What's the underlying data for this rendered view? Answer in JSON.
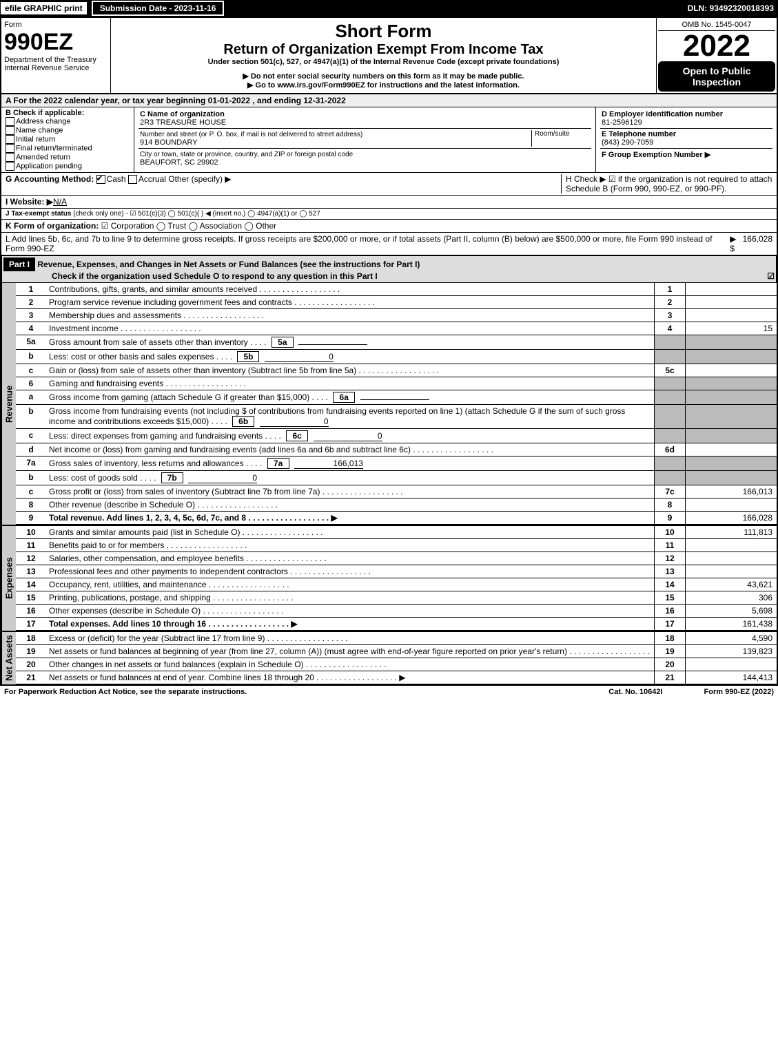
{
  "topbar": {
    "efile": "efile GRAPHIC print",
    "submission": "Submission Date - 2023-11-16",
    "dln": "DLN: 93492320018393"
  },
  "header": {
    "form_label": "Form",
    "form_number": "990EZ",
    "dept": "Department of the Treasury",
    "irs": "Internal Revenue Service",
    "title1": "Short Form",
    "title2": "Return of Organization Exempt From Income Tax",
    "subtitle": "Under section 501(c), 527, or 4947(a)(1) of the Internal Revenue Code (except private foundations)",
    "note1": "▶ Do not enter social security numbers on this form as it may be made public.",
    "note2": "▶ Go to www.irs.gov/Form990EZ for instructions and the latest information.",
    "omb": "OMB No. 1545-0047",
    "year": "2022",
    "inspection": "Open to Public Inspection"
  },
  "a_line": "A  For the 2022 calendar year, or tax year beginning 01-01-2022 , and ending 12-31-2022",
  "b": {
    "label": "B  Check if applicable:",
    "items": [
      "Address change",
      "Name change",
      "Initial return",
      "Final return/terminated",
      "Amended return",
      "Application pending"
    ]
  },
  "c": {
    "name_label": "C Name of organization",
    "name": "2R3 TREASURE HOUSE",
    "street_label": "Number and street (or P. O. box, if mail is not delivered to street address)",
    "room_label": "Room/suite",
    "street": "914 BOUNDARY",
    "city_label": "City or town, state or province, country, and ZIP or foreign postal code",
    "city": "BEAUFORT, SC  29902"
  },
  "d": {
    "label": "D Employer identification number",
    "value": "81-2596129"
  },
  "e": {
    "label": "E Telephone number",
    "value": "(843) 290-7059"
  },
  "f": {
    "label": "F Group Exemption Number  ▶",
    "value": ""
  },
  "g": {
    "label": "G Accounting Method:",
    "cash": "Cash",
    "accrual": "Accrual",
    "other": "Other (specify) ▶"
  },
  "h": {
    "text": "H  Check ▶ ☑ if the organization is not required to attach Schedule B (Form 990, 990-EZ, or 990-PF)."
  },
  "i": {
    "label": "I Website: ▶",
    "value": "N/A"
  },
  "j": {
    "label": "J Tax-exempt status",
    "text": "(check only one) - ☑ 501(c)(3)  ◯ 501(c)(  ) ◀ (insert no.)  ◯ 4947(a)(1) or  ◯ 527"
  },
  "k": {
    "label": "K Form of organization:",
    "text": "☑ Corporation   ◯ Trust   ◯ Association   ◯ Other"
  },
  "l": {
    "text": "L Add lines 5b, 6c, and 7b to line 9 to determine gross receipts. If gross receipts are $200,000 or more, or if total assets (Part II, column (B) below) are $500,000 or more, file Form 990 instead of Form 990-EZ",
    "arrow": "▶ $",
    "value": "166,028"
  },
  "part1": {
    "title": "Part I",
    "heading": "Revenue, Expenses, and Changes in Net Assets or Fund Balances (see the instructions for Part I)",
    "check_note": "Check if the organization used Schedule O to respond to any question in this Part I",
    "check_val": "☑"
  },
  "sections": {
    "revenue": "Revenue",
    "expenses": "Expenses",
    "netassets": "Net Assets"
  },
  "lines": [
    {
      "n": "1",
      "d": "Contributions, gifts, grants, and similar amounts received",
      "num": "1",
      "v": ""
    },
    {
      "n": "2",
      "d": "Program service revenue including government fees and contracts",
      "num": "2",
      "v": ""
    },
    {
      "n": "3",
      "d": "Membership dues and assessments",
      "num": "3",
      "v": ""
    },
    {
      "n": "4",
      "d": "Investment income",
      "num": "4",
      "v": "15"
    },
    {
      "n": "5a",
      "d": "Gross amount from sale of assets other than inventory",
      "sub": "5a",
      "sv": ""
    },
    {
      "n": "b",
      "d": "Less: cost or other basis and sales expenses",
      "sub": "5b",
      "sv": "0"
    },
    {
      "n": "c",
      "d": "Gain or (loss) from sale of assets other than inventory (Subtract line 5b from line 5a)",
      "num": "5c",
      "v": ""
    },
    {
      "n": "6",
      "d": "Gaming and fundraising events"
    },
    {
      "n": "a",
      "d": "Gross income from gaming (attach Schedule G if greater than $15,000)",
      "sub": "6a",
      "sv": ""
    },
    {
      "n": "b",
      "d": "Gross income from fundraising events (not including $                     of contributions from fundraising events reported on line 1) (attach Schedule G if the sum of such gross income and contributions exceeds $15,000)",
      "sub": "6b",
      "sv": "0"
    },
    {
      "n": "c",
      "d": "Less: direct expenses from gaming and fundraising events",
      "sub": "6c",
      "sv": "0"
    },
    {
      "n": "d",
      "d": "Net income or (loss) from gaming and fundraising events (add lines 6a and 6b and subtract line 6c)",
      "num": "6d",
      "v": ""
    },
    {
      "n": "7a",
      "d": "Gross sales of inventory, less returns and allowances",
      "sub": "7a",
      "sv": "166,013"
    },
    {
      "n": "b",
      "d": "Less: cost of goods sold",
      "sub": "7b",
      "sv": "0"
    },
    {
      "n": "c",
      "d": "Gross profit or (loss) from sales of inventory (Subtract line 7b from line 7a)",
      "num": "7c",
      "v": "166,013"
    },
    {
      "n": "8",
      "d": "Other revenue (describe in Schedule O)",
      "num": "8",
      "v": ""
    },
    {
      "n": "9",
      "d": "Total revenue. Add lines 1, 2, 3, 4, 5c, 6d, 7c, and 8",
      "num": "9",
      "v": "166,028",
      "bold": true,
      "arrow": true
    },
    {
      "n": "10",
      "d": "Grants and similar amounts paid (list in Schedule O)",
      "num": "10",
      "v": "111,813"
    },
    {
      "n": "11",
      "d": "Benefits paid to or for members",
      "num": "11",
      "v": ""
    },
    {
      "n": "12",
      "d": "Salaries, other compensation, and employee benefits",
      "num": "12",
      "v": ""
    },
    {
      "n": "13",
      "d": "Professional fees and other payments to independent contractors",
      "num": "13",
      "v": ""
    },
    {
      "n": "14",
      "d": "Occupancy, rent, utilities, and maintenance",
      "num": "14",
      "v": "43,621"
    },
    {
      "n": "15",
      "d": "Printing, publications, postage, and shipping",
      "num": "15",
      "v": "306"
    },
    {
      "n": "16",
      "d": "Other expenses (describe in Schedule O)",
      "num": "16",
      "v": "5,698"
    },
    {
      "n": "17",
      "d": "Total expenses. Add lines 10 through 16",
      "num": "17",
      "v": "161,438",
      "bold": true,
      "arrow": true
    },
    {
      "n": "18",
      "d": "Excess or (deficit) for the year (Subtract line 17 from line 9)",
      "num": "18",
      "v": "4,590"
    },
    {
      "n": "19",
      "d": "Net assets or fund balances at beginning of year (from line 27, column (A)) (must agree with end-of-year figure reported on prior year's return)",
      "num": "19",
      "v": "139,823"
    },
    {
      "n": "20",
      "d": "Other changes in net assets or fund balances (explain in Schedule O)",
      "num": "20",
      "v": ""
    },
    {
      "n": "21",
      "d": "Net assets or fund balances at end of year. Combine lines 18 through 20",
      "num": "21",
      "v": "144,413",
      "arrow": true
    }
  ],
  "footer": {
    "left": "For Paperwork Reduction Act Notice, see the separate instructions.",
    "center": "Cat. No. 10642I",
    "right": "Form 990-EZ (2022)"
  },
  "grouping": {
    "revenue_end": 16,
    "expenses_end": 24
  }
}
